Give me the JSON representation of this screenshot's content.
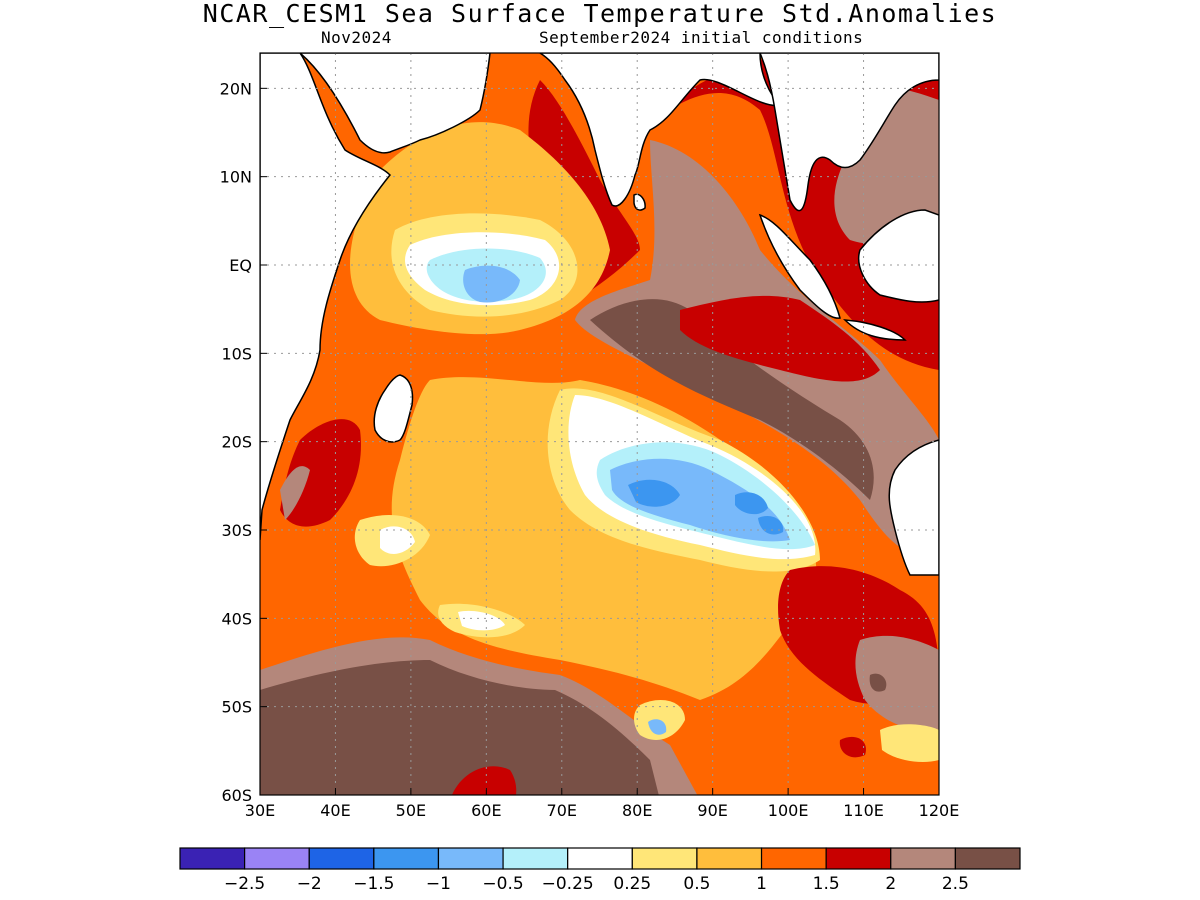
{
  "title": "NCAR_CESM1 Sea Surface Temperature Std.Anomalies",
  "subtitle_left": "Nov2024",
  "subtitle_right": "September2024 initial conditions",
  "map": {
    "lon_range": [
      30,
      120
    ],
    "lat_range": [
      -60,
      24
    ],
    "lon_ticks": [
      "30E",
      "40E",
      "50E",
      "60E",
      "70E",
      "80E",
      "90E",
      "100E",
      "110E",
      "120E"
    ],
    "lat_ticks": [
      "20N",
      "10N",
      "EQ",
      "10S",
      "20S",
      "30S",
      "40S",
      "50S",
      "60S"
    ],
    "grid": true,
    "land_color": "#ffffff",
    "ocean_background_color": "#ff6600"
  },
  "colorbar": {
    "colors": [
      "#3a22b4",
      "#9a83f5",
      "#1e64e6",
      "#3c96f0",
      "#78b9fa",
      "#b4f0fa",
      "#ffffff",
      "#ffe678",
      "#ffbe3c",
      "#ff6600",
      "#c80000",
      "#b4877b",
      "#785046"
    ],
    "labels": [
      "-2.5",
      "-2",
      "-1.5",
      "-1",
      "-0.5",
      "-0.25",
      "0.25",
      "0.5",
      "1",
      "1.5",
      "2",
      "2.5"
    ]
  }
}
